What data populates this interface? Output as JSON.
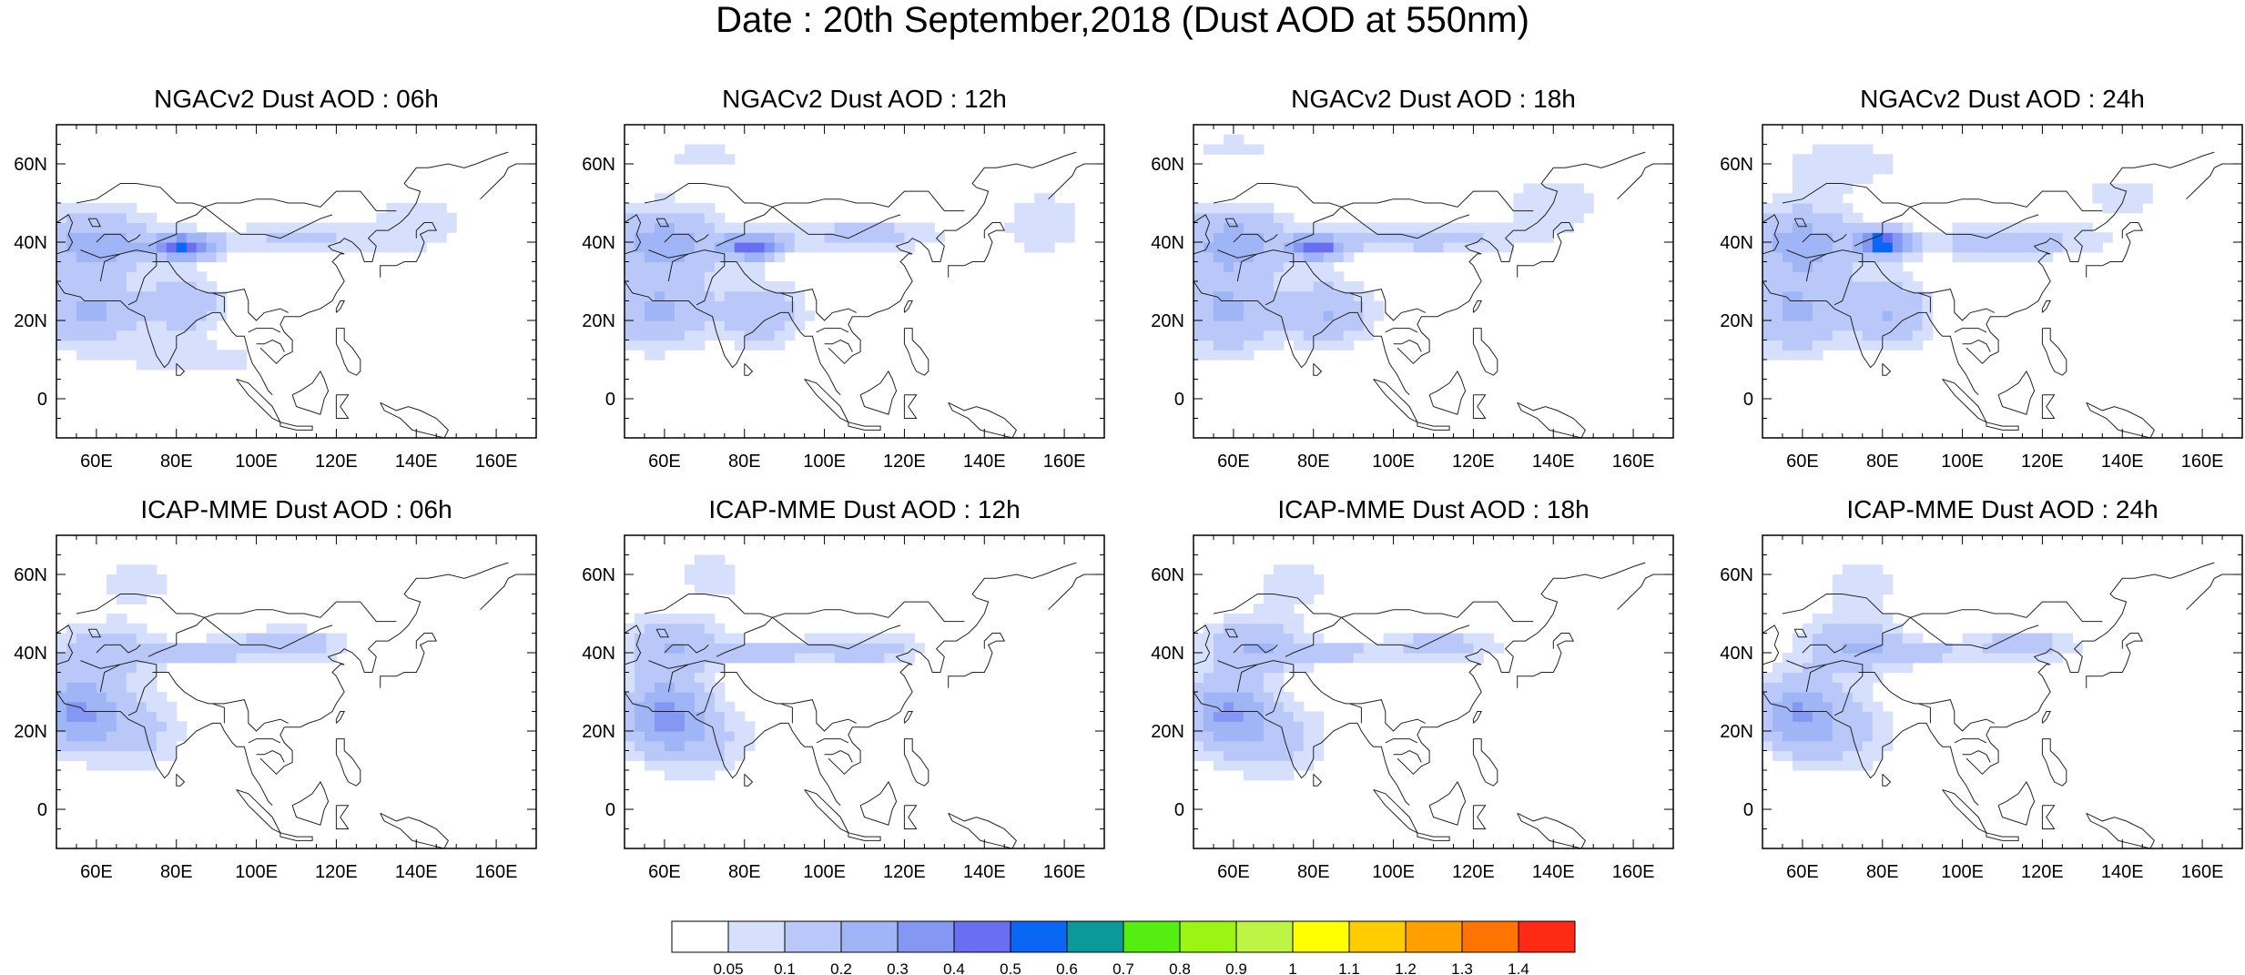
{
  "title": "Date : 20th September,2018 (Dust AOD at 550nm)",
  "axes": {
    "lat_ticks": [
      "60N",
      "40N",
      "20N",
      "0"
    ],
    "lon_ticks": [
      "60E",
      "80E",
      "100E",
      "120E",
      "140E",
      "160E"
    ]
  },
  "panels": [
    {
      "title": "NGACv2 Dust AOD : 06h",
      "model": "NGACv2",
      "hour": "06h"
    },
    {
      "title": "NGACv2 Dust AOD : 12h",
      "model": "NGACv2",
      "hour": "12h"
    },
    {
      "title": "NGACv2 Dust AOD : 18h",
      "model": "NGACv2",
      "hour": "18h"
    },
    {
      "title": "NGACv2 Dust AOD : 24h",
      "model": "NGACv2",
      "hour": "24h"
    },
    {
      "title": "ICAP-MME Dust AOD : 06h",
      "model": "ICAP-MME",
      "hour": "06h"
    },
    {
      "title": "ICAP-MME Dust AOD : 12h",
      "model": "ICAP-MME",
      "hour": "12h"
    },
    {
      "title": "ICAP-MME Dust AOD : 18h",
      "model": "ICAP-MME",
      "hour": "18h"
    },
    {
      "title": "ICAP-MME Dust AOD : 24h",
      "model": "ICAP-MME",
      "hour": "24h"
    }
  ],
  "colorbar": {
    "labels": [
      "0.05",
      "0.1",
      "0.2",
      "0.3",
      "0.4",
      "0.5",
      "0.6",
      "0.7",
      "0.8",
      "0.9",
      "1",
      "1.1",
      "1.2",
      "1.3",
      "1.4"
    ],
    "colors": [
      "#ffffff",
      "#d6e0fc",
      "#b9c8f8",
      "#9fb5f5",
      "#8497f3",
      "#6a6ef0",
      "#0a66f5",
      "#0a9a9a",
      "#55ee11",
      "#99f511",
      "#bef545",
      "#ffff00",
      "#ffcc00",
      "#ff9f00",
      "#ff7300",
      "#ff2a14"
    ]
  },
  "chart_data": {
    "type": "heatmap",
    "title": "Date : 20th September,2018 (Dust AOD at 550nm)",
    "extent": {
      "lon": [
        50,
        170
      ],
      "lat": [
        -10,
        70
      ]
    },
    "panels": [
      {
        "title": "NGACv2 Dust AOD : 06h",
        "blobs": [
          {
            "lon": 60,
            "lat": 40,
            "rlon": 14,
            "rlat": 8,
            "aod": 0.25
          },
          {
            "lon": 82,
            "lat": 39,
            "rlon": 8,
            "rlat": 3,
            "aod": 0.5
          },
          {
            "lon": 110,
            "lat": 41,
            "rlon": 18,
            "rlat": 4,
            "aod": 0.12
          },
          {
            "lon": 58,
            "lat": 22,
            "rlon": 12,
            "rlat": 9,
            "aod": 0.22
          },
          {
            "lon": 82,
            "lat": 24,
            "rlon": 10,
            "rlat": 7,
            "aod": 0.18
          },
          {
            "lon": 140,
            "lat": 45,
            "rlon": 14,
            "rlat": 9,
            "aod": 0.08
          },
          {
            "lon": 85,
            "lat": 10,
            "rlon": 16,
            "rlat": 4,
            "aod": 0.1
          }
        ]
      },
      {
        "title": "NGACv2 Dust AOD : 12h",
        "blobs": [
          {
            "lon": 60,
            "lat": 40,
            "rlon": 14,
            "rlat": 9,
            "aod": 0.25
          },
          {
            "lon": 82,
            "lat": 39,
            "rlon": 7,
            "rlat": 3,
            "aod": 0.45
          },
          {
            "lon": 110,
            "lat": 42,
            "rlon": 20,
            "rlat": 4,
            "aod": 0.14
          },
          {
            "lon": 58,
            "lat": 22,
            "rlon": 12,
            "rlat": 9,
            "aod": 0.22
          },
          {
            "lon": 84,
            "lat": 22,
            "rlon": 11,
            "rlat": 8,
            "aod": 0.18
          },
          {
            "lon": 155,
            "lat": 45,
            "rlon": 12,
            "rlat": 10,
            "aod": 0.08
          },
          {
            "lon": 70,
            "lat": 62,
            "rlon": 20,
            "rlat": 5,
            "aod": 0.06
          }
        ]
      },
      {
        "title": "NGACv2 Dust AOD : 18h",
        "blobs": [
          {
            "lon": 60,
            "lat": 40,
            "rlon": 14,
            "rlat": 9,
            "aod": 0.24
          },
          {
            "lon": 81,
            "lat": 39,
            "rlon": 7,
            "rlat": 3,
            "aod": 0.42
          },
          {
            "lon": 108,
            "lat": 41,
            "rlon": 22,
            "rlat": 4,
            "aod": 0.14
          },
          {
            "lon": 58,
            "lat": 22,
            "rlon": 12,
            "rlat": 10,
            "aod": 0.22
          },
          {
            "lon": 84,
            "lat": 22,
            "rlon": 11,
            "rlat": 8,
            "aod": 0.2
          },
          {
            "lon": 140,
            "lat": 50,
            "rlon": 16,
            "rlat": 10,
            "aod": 0.07
          },
          {
            "lon": 60,
            "lat": 64,
            "rlon": 12,
            "rlat": 4,
            "aod": 0.07
          }
        ]
      },
      {
        "title": "NGACv2 Dust AOD : 24h",
        "blobs": [
          {
            "lon": 60,
            "lat": 40,
            "rlon": 14,
            "rlat": 9,
            "aod": 0.25
          },
          {
            "lon": 80,
            "lat": 40,
            "rlon": 6,
            "rlat": 3,
            "aod": 0.55
          },
          {
            "lon": 110,
            "lat": 40,
            "rlon": 22,
            "rlat": 4,
            "aod": 0.16
          },
          {
            "lon": 58,
            "lat": 22,
            "rlon": 12,
            "rlat": 10,
            "aod": 0.22
          },
          {
            "lon": 82,
            "lat": 22,
            "rlon": 10,
            "rlat": 9,
            "aod": 0.2
          },
          {
            "lon": 70,
            "lat": 60,
            "rlon": 22,
            "rlat": 8,
            "aod": 0.07
          },
          {
            "lon": 140,
            "lat": 52,
            "rlon": 18,
            "rlat": 10,
            "aod": 0.06
          }
        ]
      },
      {
        "title": "ICAP-MME Dust AOD : 06h",
        "blobs": [
          {
            "lon": 55,
            "lat": 25,
            "rlon": 10,
            "rlat": 9,
            "aod": 0.3
          },
          {
            "lon": 62,
            "lat": 40,
            "rlon": 12,
            "rlat": 7,
            "aod": 0.18
          },
          {
            "lon": 108,
            "lat": 42,
            "rlon": 14,
            "rlat": 4,
            "aod": 0.18
          },
          {
            "lon": 85,
            "lat": 40,
            "rlon": 12,
            "rlat": 3,
            "aod": 0.14
          },
          {
            "lon": 70,
            "lat": 58,
            "rlon": 12,
            "rlat": 8,
            "aod": 0.07
          },
          {
            "lon": 70,
            "lat": 20,
            "rlon": 12,
            "rlat": 10,
            "aod": 0.13
          }
        ]
      },
      {
        "title": "ICAP-MME Dust AOD : 12h",
        "blobs": [
          {
            "lon": 60,
            "lat": 25,
            "rlon": 10,
            "rlat": 9,
            "aod": 0.28
          },
          {
            "lon": 62,
            "lat": 42,
            "rlon": 12,
            "rlat": 7,
            "aod": 0.2
          },
          {
            "lon": 110,
            "lat": 41,
            "rlon": 14,
            "rlat": 4,
            "aod": 0.16
          },
          {
            "lon": 85,
            "lat": 40,
            "rlon": 12,
            "rlat": 3,
            "aod": 0.14
          },
          {
            "lon": 72,
            "lat": 60,
            "rlon": 12,
            "rlat": 8,
            "aod": 0.07
          },
          {
            "lon": 68,
            "lat": 18,
            "rlon": 14,
            "rlat": 10,
            "aod": 0.13
          }
        ]
      },
      {
        "title": "ICAP-MME Dust AOD : 18h",
        "blobs": [
          {
            "lon": 58,
            "lat": 25,
            "rlon": 10,
            "rlat": 9,
            "aod": 0.28
          },
          {
            "lon": 65,
            "lat": 42,
            "rlon": 12,
            "rlat": 7,
            "aod": 0.2
          },
          {
            "lon": 112,
            "lat": 42,
            "rlon": 14,
            "rlat": 4,
            "aod": 0.15
          },
          {
            "lon": 85,
            "lat": 40,
            "rlon": 12,
            "rlat": 3,
            "aod": 0.14
          },
          {
            "lon": 75,
            "lat": 58,
            "rlon": 12,
            "rlat": 8,
            "aod": 0.07
          },
          {
            "lon": 70,
            "lat": 18,
            "rlon": 14,
            "rlat": 10,
            "aod": 0.13
          }
        ]
      },
      {
        "title": "ICAP-MME Dust AOD : 24h",
        "blobs": [
          {
            "lon": 58,
            "lat": 25,
            "rlon": 10,
            "rlat": 9,
            "aod": 0.26
          },
          {
            "lon": 72,
            "lat": 42,
            "rlon": 12,
            "rlat": 7,
            "aod": 0.2
          },
          {
            "lon": 115,
            "lat": 42,
            "rlon": 14,
            "rlat": 4,
            "aod": 0.15
          },
          {
            "lon": 88,
            "lat": 40,
            "rlon": 12,
            "rlat": 3,
            "aod": 0.14
          },
          {
            "lon": 75,
            "lat": 58,
            "rlon": 12,
            "rlat": 8,
            "aod": 0.07
          },
          {
            "lon": 70,
            "lat": 20,
            "rlon": 14,
            "rlat": 10,
            "aod": 0.13
          }
        ]
      }
    ],
    "levels": [
      0.05,
      0.1,
      0.2,
      0.3,
      0.4,
      0.5,
      0.6,
      0.7,
      0.8,
      0.9,
      1,
      1.1,
      1.2,
      1.3,
      1.4
    ]
  }
}
